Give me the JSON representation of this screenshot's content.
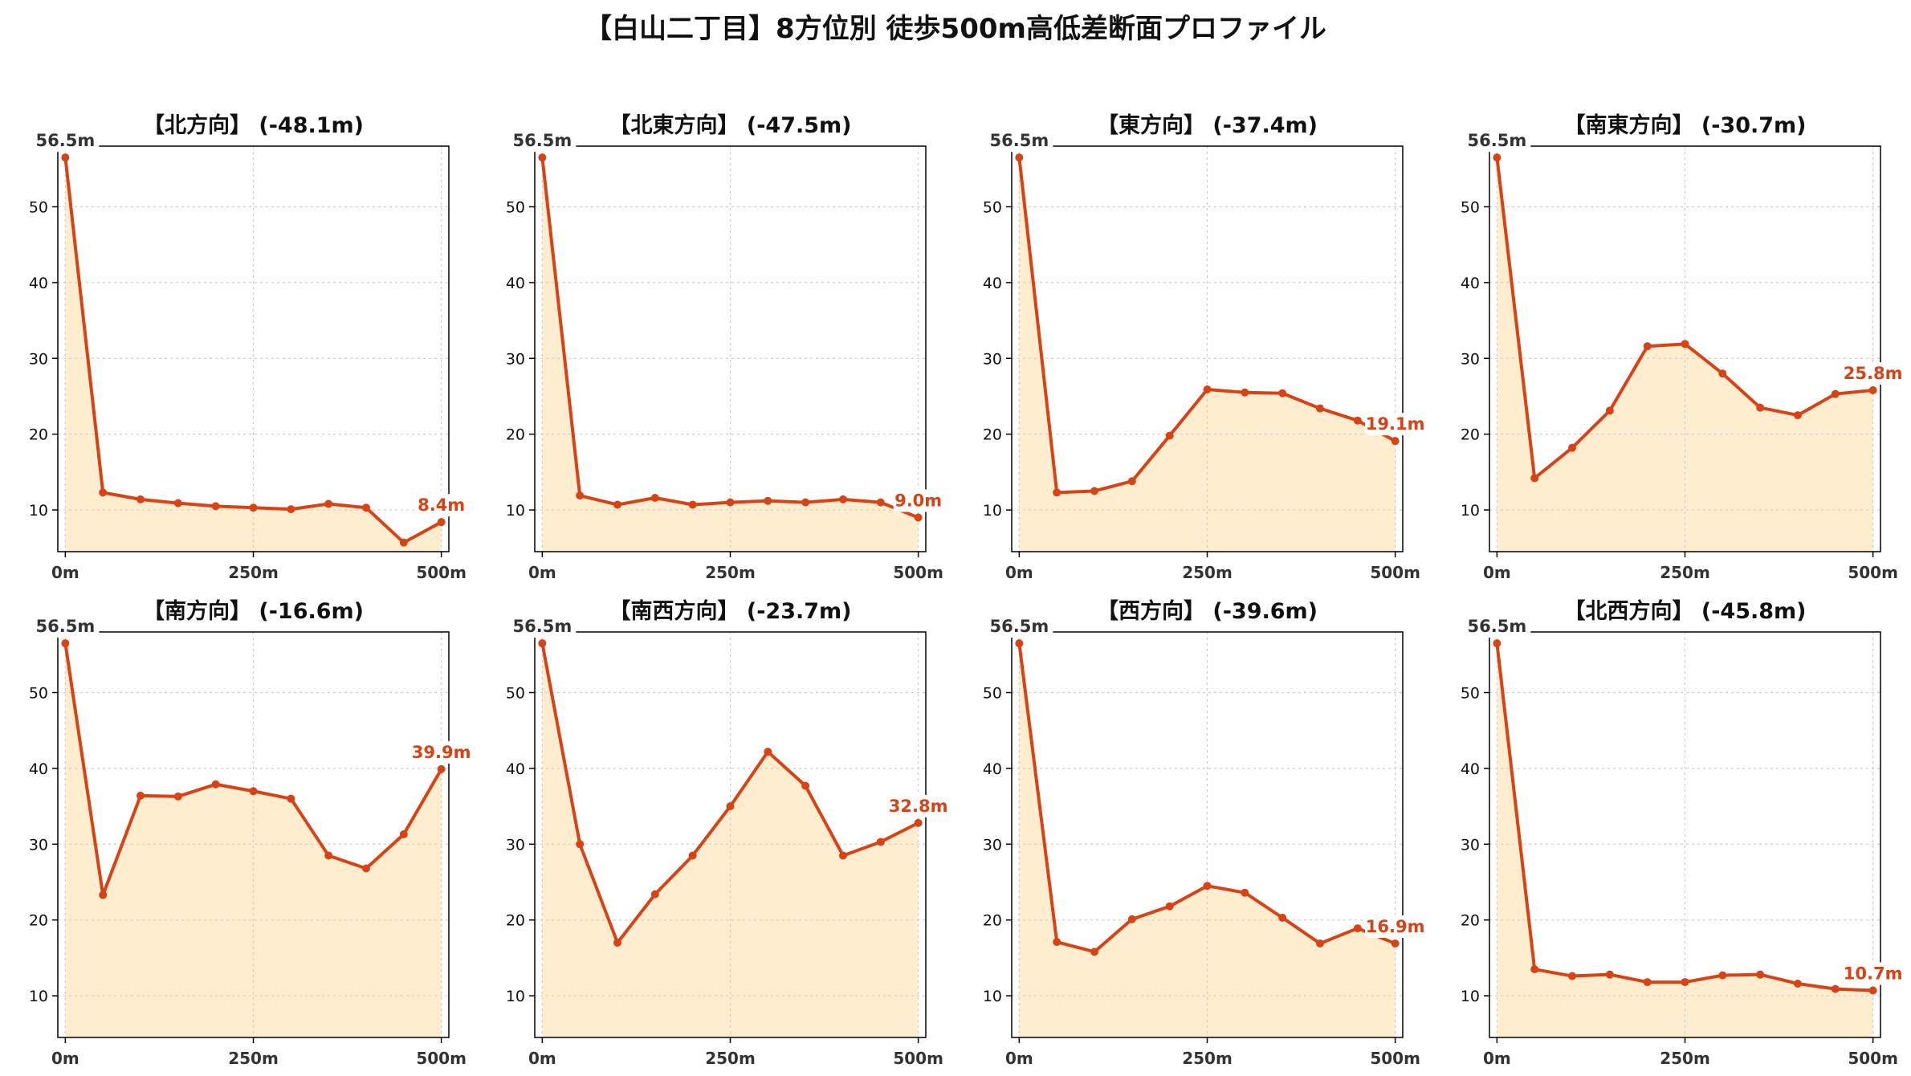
{
  "title": "【白山二丁目】8方位別 徒歩500m高低差断面プロファイル",
  "colors": {
    "line": "#d84315",
    "fill": "#ffedd0",
    "grid": "#cccccc"
  },
  "chart_data": [
    {
      "type": "area",
      "title": "【北方向】 (-48.1m)",
      "x": [
        0,
        50,
        100,
        150,
        200,
        250,
        300,
        350,
        400,
        450,
        500
      ],
      "values": [
        56.5,
        12.3,
        11.4,
        10.9,
        10.5,
        10.3,
        10.1,
        10.8,
        10.3,
        5.7,
        8.4
      ],
      "start_label": "56.5m",
      "end_label": "8.4m",
      "xticks": [
        "0m",
        "250m",
        "500m"
      ],
      "yticks": [
        10,
        20,
        30,
        40,
        50
      ],
      "xlim": [
        -10,
        510
      ],
      "ylim": [
        4.5,
        58
      ],
      "grid": true
    },
    {
      "type": "area",
      "title": "【北東方向】 (-47.5m)",
      "x": [
        0,
        50,
        100,
        150,
        200,
        250,
        300,
        350,
        400,
        450,
        500
      ],
      "values": [
        56.5,
        11.9,
        10.7,
        11.6,
        10.7,
        11.0,
        11.2,
        11.0,
        11.4,
        11.0,
        9.0
      ],
      "start_label": "56.5m",
      "end_label": "9.0m",
      "xticks": [
        "0m",
        "250m",
        "500m"
      ],
      "yticks": [
        10,
        20,
        30,
        40,
        50
      ],
      "xlim": [
        -10,
        510
      ],
      "ylim": [
        4.5,
        58
      ],
      "grid": true
    },
    {
      "type": "area",
      "title": "【東方向】 (-37.4m)",
      "x": [
        0,
        50,
        100,
        150,
        200,
        250,
        300,
        350,
        400,
        450,
        500
      ],
      "values": [
        56.5,
        12.3,
        12.5,
        13.8,
        19.8,
        25.9,
        25.5,
        25.4,
        23.4,
        21.8,
        19.1
      ],
      "start_label": "56.5m",
      "end_label": "19.1m",
      "xticks": [
        "0m",
        "250m",
        "500m"
      ],
      "yticks": [
        10,
        20,
        30,
        40,
        50
      ],
      "xlim": [
        -10,
        510
      ],
      "ylim": [
        4.5,
        58
      ],
      "grid": true
    },
    {
      "type": "area",
      "title": "【南東方向】 (-30.7m)",
      "x": [
        0,
        50,
        100,
        150,
        200,
        250,
        300,
        350,
        400,
        450,
        500
      ],
      "values": [
        56.5,
        14.2,
        18.2,
        23.1,
        31.6,
        31.9,
        28.0,
        23.5,
        22.5,
        25.3,
        25.8
      ],
      "start_label": "56.5m",
      "end_label": "25.8m",
      "xticks": [
        "0m",
        "250m",
        "500m"
      ],
      "yticks": [
        10,
        20,
        30,
        40,
        50
      ],
      "xlim": [
        -10,
        510
      ],
      "ylim": [
        4.5,
        58
      ],
      "grid": true
    },
    {
      "type": "area",
      "title": "【南方向】 (-16.6m)",
      "x": [
        0,
        50,
        100,
        150,
        200,
        250,
        300,
        350,
        400,
        450,
        500
      ],
      "values": [
        56.5,
        23.3,
        36.4,
        36.3,
        37.9,
        37.0,
        36.0,
        28.5,
        26.8,
        31.3,
        39.9
      ],
      "start_label": "56.5m",
      "end_label": "39.9m",
      "xticks": [
        "0m",
        "250m",
        "500m"
      ],
      "yticks": [
        10,
        20,
        30,
        40,
        50
      ],
      "xlim": [
        -10,
        510
      ],
      "ylim": [
        4.5,
        58
      ],
      "grid": true
    },
    {
      "type": "area",
      "title": "【南西方向】 (-23.7m)",
      "x": [
        0,
        50,
        100,
        150,
        200,
        250,
        300,
        350,
        400,
        450,
        500
      ],
      "values": [
        56.5,
        30.0,
        17.0,
        23.4,
        28.5,
        35.0,
        42.2,
        37.7,
        28.5,
        30.3,
        32.8
      ],
      "start_label": "56.5m",
      "end_label": "32.8m",
      "xticks": [
        "0m",
        "250m",
        "500m"
      ],
      "yticks": [
        10,
        20,
        30,
        40,
        50
      ],
      "xlim": [
        -10,
        510
      ],
      "ylim": [
        4.5,
        58
      ],
      "grid": true
    },
    {
      "type": "area",
      "title": "【西方向】 (-39.6m)",
      "x": [
        0,
        50,
        100,
        150,
        200,
        250,
        300,
        350,
        400,
        450,
        500
      ],
      "values": [
        56.5,
        17.1,
        15.8,
        20.1,
        21.8,
        24.5,
        23.6,
        20.3,
        16.9,
        18.9,
        16.9
      ],
      "start_label": "56.5m",
      "end_label": "16.9m",
      "xticks": [
        "0m",
        "250m",
        "500m"
      ],
      "yticks": [
        10,
        20,
        30,
        40,
        50
      ],
      "xlim": [
        -10,
        510
      ],
      "ylim": [
        4.5,
        58
      ],
      "grid": true
    },
    {
      "type": "area",
      "title": "【北西方向】 (-45.8m)",
      "x": [
        0,
        50,
        100,
        150,
        200,
        250,
        300,
        350,
        400,
        450,
        500
      ],
      "values": [
        56.5,
        13.5,
        12.6,
        12.8,
        11.8,
        11.8,
        12.7,
        12.8,
        11.6,
        10.9,
        10.7
      ],
      "start_label": "56.5m",
      "end_label": "10.7m",
      "xticks": [
        "0m",
        "250m",
        "500m"
      ],
      "yticks": [
        10,
        20,
        30,
        40,
        50
      ],
      "xlim": [
        -10,
        510
      ],
      "ylim": [
        4.5,
        58
      ],
      "grid": true
    }
  ]
}
